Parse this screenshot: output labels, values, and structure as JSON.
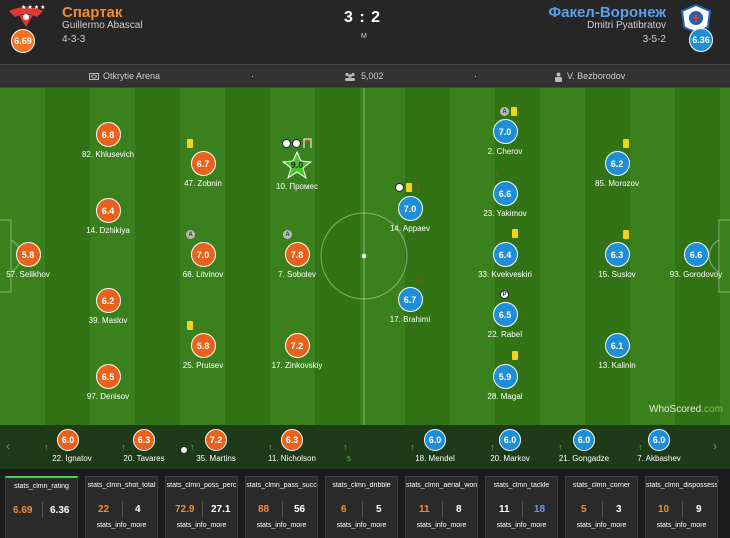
{
  "home": {
    "name": "Спартак",
    "coach": "Guillermo Abascal",
    "formation": "4-3-3",
    "rating": "6.69",
    "stars": "★★★★",
    "color": "#f28b30"
  },
  "away": {
    "name": "Факел-Воронеж",
    "coach": "Dmitri Pyatibratov",
    "formation": "3-5-2",
    "rating": "6.36",
    "color": "#5aa0ea"
  },
  "score": "3 : 2",
  "period": "M",
  "info": {
    "venue": "Otkrytie Arena",
    "dot1": "·",
    "attendance": "5,002",
    "dot2": "·",
    "referee": "V. Bezborodov"
  },
  "players": [
    {
      "r": "6.8",
      "n": "82. Khlusevich"
    },
    {
      "r": "6.4",
      "n": "14. Dzhikiya"
    },
    {
      "r": "5.8",
      "n": "57. Selikhov"
    },
    {
      "r": "6.2",
      "n": "39. Maslov"
    },
    {
      "r": "6.5",
      "n": "97. Denisov"
    },
    {
      "r": "6.7",
      "n": "47. Zobnin"
    },
    {
      "r": "7.0",
      "n": "68. Litvinov"
    },
    {
      "r": "5.8",
      "n": "25. Prutsev"
    },
    {
      "r": "9.0",
      "n": "10. Промес"
    },
    {
      "r": "7.8",
      "n": "7. Sobolev"
    },
    {
      "r": "7.2",
      "n": "17. Zinkovskiy"
    },
    {
      "r": "7.0",
      "n": "14. Appaev"
    },
    {
      "r": "6.7",
      "n": "17. Brahimi"
    },
    {
      "r": "7.0",
      "n": "2. Cherov"
    },
    {
      "r": "6.6",
      "n": "23. Yakimov"
    },
    {
      "r": "6.4",
      "n": "33. Kvekveskiri"
    },
    {
      "r": "6.5",
      "n": "22. Rabeï"
    },
    {
      "r": "5.9",
      "n": "28. Magal"
    },
    {
      "r": "6.2",
      "n": "85. Morozov"
    },
    {
      "r": "6.3",
      "n": "15. Suslov"
    },
    {
      "r": "6.1",
      "n": "13. Kalinin"
    },
    {
      "r": "6.6",
      "n": "93. Gorodovoy"
    }
  ],
  "bench": [
    {
      "r": "6.0",
      "n": "22. Ignatov"
    },
    {
      "r": "6.3",
      "n": "20. Tavares"
    },
    {
      "r": "7.2",
      "n": "35. Martins"
    },
    {
      "r": "6.3",
      "n": "11. Nicholson"
    },
    {
      "r": "6.0",
      "n": "18. Mendel"
    },
    {
      "r": "6.0",
      "n": "20. Markov"
    },
    {
      "r": "6.0",
      "n": "21. Gongadze"
    },
    {
      "r": "6.0",
      "n": "7. Akbashev"
    }
  ],
  "bench_misc": "5",
  "watermark": "WhoScored",
  "watermark_suffix": ".com",
  "stats": [
    {
      "label": "stats_clmn_rating",
      "h": "6.69",
      "a": "6.36",
      "info": "",
      "hc": "#f28b30",
      "ac": "#ffffff",
      "active": true
    },
    {
      "label": "stats_clmn_shot_total",
      "h": "22",
      "a": "4",
      "info": "stats_info_more",
      "hc": "#f28b30",
      "ac": "#ffffff"
    },
    {
      "label": "stats_clmn_poss_perc",
      "h": "72.9",
      "a": "27.1",
      "info": "stats_info_more",
      "hc": "#f28b30",
      "ac": "#ffffff"
    },
    {
      "label": "stats_clmn_pass_succ",
      "h": "88",
      "a": "56",
      "info": "stats_info_more",
      "hc": "#f28b30",
      "ac": "#ffffff"
    },
    {
      "label": "stats_clmn_dribble",
      "h": "6",
      "a": "5",
      "info": "stats_info_more",
      "hc": "#f28b30",
      "ac": "#ffffff"
    },
    {
      "label": "stats_clmn_aerial_won",
      "h": "11",
      "a": "8",
      "info": "stats_info_more",
      "hc": "#f28b30",
      "ac": "#ffffff"
    },
    {
      "label": "stats_clmn_tackle",
      "h": "11",
      "a": "18",
      "info": "stats_info_more",
      "hc": "#ffffff",
      "ac": "#5aa0ea"
    },
    {
      "label": "stats_clmn_corner",
      "h": "5",
      "a": "3",
      "info": "stats_info_more",
      "hc": "#f28b30",
      "ac": "#ffffff"
    },
    {
      "label": "stats_clmn_dispossessed",
      "h": "10",
      "a": "9",
      "info": "stats_info_more",
      "hc": "#f28b30",
      "ac": "#ffffff"
    }
  ]
}
